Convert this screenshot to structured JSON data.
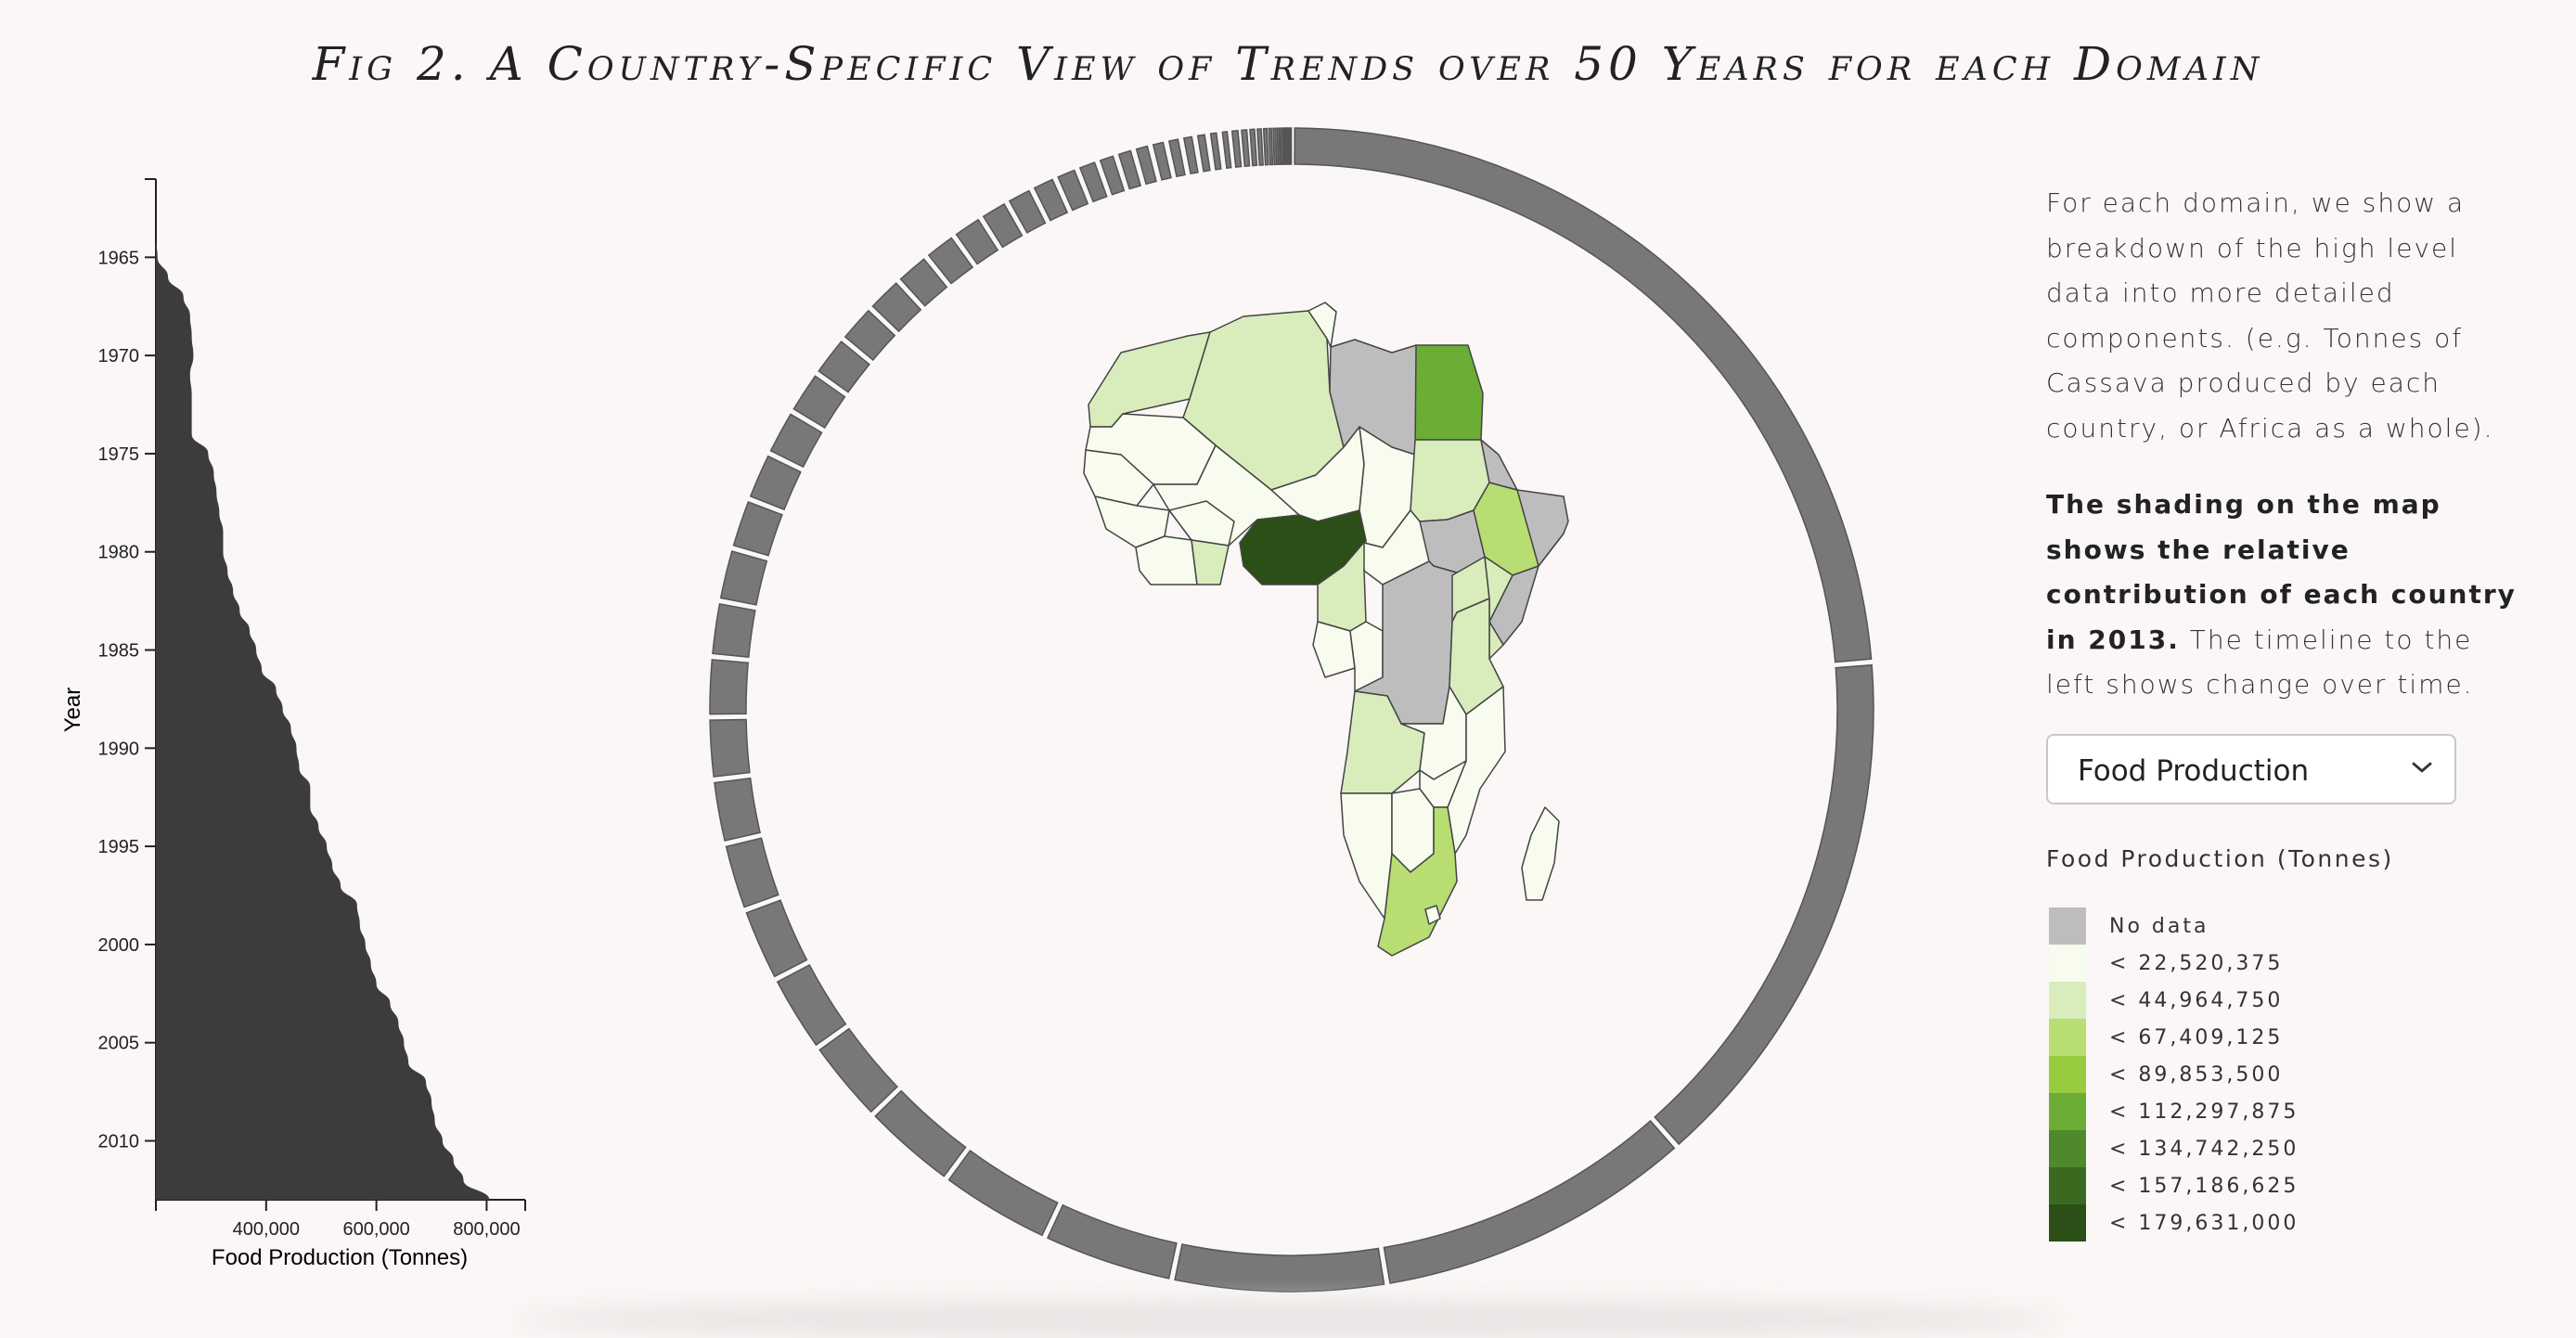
{
  "title": "Fig 2. A Country-Specific View of Trends over 50 Years for each Domain",
  "description": {
    "p1": "For each domain, we show a breakdown of the high level data into more detailed components. (e.g. Tonnes of Cassava produced by each country, or Africa as a whole).",
    "p2_bold": "The shading on the map shows the relative contribution of each country in 2013.",
    "p2_rest": " The timeline to the left shows change over time."
  },
  "domain_select": {
    "selected": "Food Production",
    "icon": "chevron-down-icon"
  },
  "legend": {
    "title": "Food Production (Tonnes)",
    "items": [
      {
        "label": "No data",
        "color": "#bdbdbd"
      },
      {
        "label": "< 22,520,375",
        "color": "#f7fcef"
      },
      {
        "label": "< 44,964,750",
        "color": "#d9ecbc"
      },
      {
        "label": "< 67,409,125",
        "color": "#b7dd73"
      },
      {
        "label": "< 89,853,500",
        "color": "#98cc3e"
      },
      {
        "label": "< 112,297,875",
        "color": "#6bad35"
      },
      {
        "label": "< 134,742,250",
        "color": "#4e8a2b"
      },
      {
        "label": "< 157,186,625",
        "color": "#3a6a1f"
      },
      {
        "label": "< 179,631,000",
        "color": "#2c4e17"
      }
    ]
  },
  "chart_data": [
    {
      "type": "area",
      "orientation": "vertical",
      "xlabel": "Food Production (Tonnes)",
      "ylabel": "Year",
      "x_ticks": [
        "400,000",
        "600,000",
        "800,000"
      ],
      "x_tick_values": [
        400000,
        600000,
        800000
      ],
      "y_ticks": [
        "1965",
        "1970",
        "1975",
        "1980",
        "1985",
        "1990",
        "1995",
        "2000",
        "2005",
        "2010"
      ],
      "xlim": [
        200000,
        870000
      ],
      "ylim": [
        1963,
        2013
      ],
      "years": [
        1963,
        1964,
        1965,
        1966,
        1967,
        1968,
        1969,
        1970,
        1971,
        1972,
        1973,
        1974,
        1975,
        1976,
        1977,
        1978,
        1979,
        1980,
        1981,
        1982,
        1983,
        1984,
        1985,
        1986,
        1987,
        1988,
        1989,
        1990,
        1991,
        1992,
        1993,
        1994,
        1995,
        1996,
        1997,
        1998,
        1999,
        2000,
        2001,
        2002,
        2003,
        2004,
        2005,
        2006,
        2007,
        2008,
        2009,
        2010,
        2011,
        2012,
        2013
      ],
      "values": [
        200000,
        200000,
        203000,
        222000,
        250000,
        262000,
        265000,
        268000,
        262000,
        265000,
        265000,
        265000,
        295000,
        305000,
        310000,
        315000,
        322000,
        322000,
        330000,
        340000,
        352000,
        370000,
        382000,
        392000,
        418000,
        430000,
        445000,
        455000,
        460000,
        480000,
        480000,
        495000,
        510000,
        520000,
        535000,
        565000,
        570000,
        580000,
        590000,
        600000,
        625000,
        640000,
        650000,
        658000,
        690000,
        700000,
        706000,
        720000,
        740000,
        758000,
        805000
      ]
    },
    {
      "type": "ring",
      "description_labels": false,
      "segments": [
        40,
        25,
        15,
        10,
        6.2,
        5.3,
        4.5,
        4.0,
        3.7,
        3.5,
        3.2,
        3.0,
        2.9,
        2.8,
        2.6,
        2.5,
        2.4,
        2.3,
        2.2,
        2.1,
        2.0,
        1.9,
        1.8,
        1.7,
        1.6,
        1.5,
        1.4,
        1.3,
        1.2,
        1.1,
        1.0,
        0.9,
        0.85,
        0.8,
        0.75,
        0.7,
        0.65,
        0.6,
        0.55,
        0.5,
        0.45,
        0.4,
        0.35,
        0.3,
        0.25,
        0.2,
        0.2,
        0.15,
        0.15,
        0.1,
        0.1,
        0.1,
        0.1
      ]
    },
    {
      "type": "choropleth",
      "region": "Africa",
      "countries": [
        {
          "name": "Morocco",
          "color": "#d9ecbc"
        },
        {
          "name": "Algeria",
          "color": "#d9ecbc"
        },
        {
          "name": "Tunisia",
          "color": "#f7fcef"
        },
        {
          "name": "Libya",
          "color": "#bdbdbd"
        },
        {
          "name": "Egypt",
          "color": "#6bad35"
        },
        {
          "name": "Mauritania",
          "color": "#f7fcef"
        },
        {
          "name": "Mali",
          "color": "#f7fcef"
        },
        {
          "name": "Niger",
          "color": "#f7fcef"
        },
        {
          "name": "Chad",
          "color": "#f7fcef"
        },
        {
          "name": "Sudan",
          "color": "#d9ecbc"
        },
        {
          "name": "Senegal",
          "color": "#f7fcef"
        },
        {
          "name": "Burkina Faso",
          "color": "#f7fcef"
        },
        {
          "name": "Guinea",
          "color": "#f7fcef"
        },
        {
          "name": "Cote d'Ivoire",
          "color": "#f7fcef"
        },
        {
          "name": "Ghana",
          "color": "#d9ecbc"
        },
        {
          "name": "Nigeria",
          "color": "#2c4e17"
        },
        {
          "name": "Cameroon",
          "color": "#d9ecbc"
        },
        {
          "name": "Central African Republic",
          "color": "#f7fcef"
        },
        {
          "name": "South Sudan",
          "color": "#bdbdbd"
        },
        {
          "name": "Ethiopia",
          "color": "#b7dd73"
        },
        {
          "name": "Somalia",
          "color": "#bdbdbd"
        },
        {
          "name": "Eritrea",
          "color": "#bdbdbd"
        },
        {
          "name": "Gabon",
          "color": "#f7fcef"
        },
        {
          "name": "Congo",
          "color": "#f7fcef"
        },
        {
          "name": "DR Congo",
          "color": "#bdbdbd"
        },
        {
          "name": "Uganda",
          "color": "#d9ecbc"
        },
        {
          "name": "Kenya",
          "color": "#d9ecbc"
        },
        {
          "name": "Tanzania",
          "color": "#d9ecbc"
        },
        {
          "name": "Angola",
          "color": "#d9ecbc"
        },
        {
          "name": "Zambia",
          "color": "#f7fcef"
        },
        {
          "name": "Mozambique",
          "color": "#f7fcef"
        },
        {
          "name": "Namibia",
          "color": "#f7fcef"
        },
        {
          "name": "Botswana",
          "color": "#f7fcef"
        },
        {
          "name": "Zimbabwe",
          "color": "#f7fcef"
        },
        {
          "name": "South Africa",
          "color": "#b7dd73"
        },
        {
          "name": "Madagascar",
          "color": "#f7fcef"
        }
      ]
    }
  ]
}
